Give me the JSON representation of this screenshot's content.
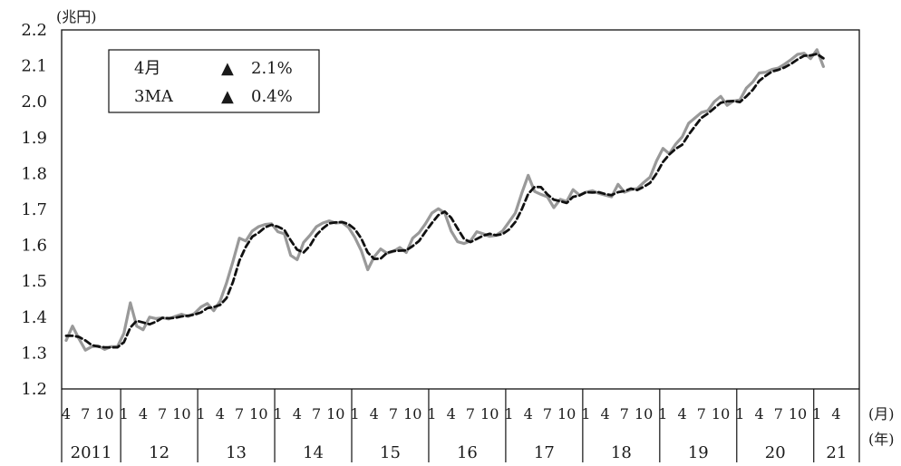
{
  "chart_data": {
    "type": "line",
    "y_unit": "(兆円)",
    "ylim": [
      1.2,
      2.2
    ],
    "yticks": [
      "2.2",
      "2.1",
      "2.0",
      "1.9",
      "1.8",
      "1.7",
      "1.6",
      "1.5",
      "1.4",
      "1.3",
      "1.2"
    ],
    "x_month_unit": "(月)",
    "x_year_unit": "(年)",
    "x_month_labels": [
      "4",
      "7",
      "10",
      "1"
    ],
    "last_year_month_labels": [
      "1",
      "4"
    ],
    "x_years": [
      "2011",
      "12",
      "13",
      "14",
      "15",
      "16",
      "17",
      "18",
      "19",
      "20",
      "21"
    ],
    "legend": [
      {
        "label": "4月",
        "marker": "▲",
        "value": "2.1%"
      },
      {
        "label": "3MA",
        "marker": "▲",
        "value": "0.4%"
      }
    ],
    "series": [
      {
        "style": "solid",
        "color": "#999999",
        "start": "2011-04",
        "values": [
          1.335,
          1.375,
          1.34,
          1.308,
          1.318,
          1.32,
          1.31,
          1.318,
          1.318,
          1.355,
          1.44,
          1.375,
          1.365,
          1.4,
          1.396,
          1.398,
          1.395,
          1.402,
          1.408,
          1.402,
          1.41,
          1.428,
          1.438,
          1.418,
          1.445,
          1.495,
          1.555,
          1.62,
          1.612,
          1.64,
          1.652,
          1.658,
          1.66,
          1.638,
          1.632,
          1.572,
          1.56,
          1.608,
          1.628,
          1.652,
          1.662,
          1.668,
          1.662,
          1.664,
          1.65,
          1.622,
          1.585,
          1.532,
          1.568,
          1.59,
          1.578,
          1.583,
          1.594,
          1.58,
          1.62,
          1.635,
          1.66,
          1.69,
          1.702,
          1.69,
          1.64,
          1.61,
          1.605,
          1.612,
          1.638,
          1.632,
          1.625,
          1.628,
          1.64,
          1.665,
          1.69,
          1.745,
          1.795,
          1.75,
          1.742,
          1.735,
          1.705,
          1.728,
          1.722,
          1.755,
          1.74,
          1.748,
          1.752,
          1.745,
          1.74,
          1.735,
          1.77,
          1.748,
          1.755,
          1.758,
          1.775,
          1.79,
          1.835,
          1.87,
          1.855,
          1.882,
          1.902,
          1.94,
          1.955,
          1.97,
          1.975,
          2.0,
          2.015,
          1.99,
          2.002,
          2.005,
          2.038,
          2.055,
          2.08,
          2.082,
          2.09,
          2.094,
          2.105,
          2.118,
          2.132,
          2.135,
          2.12,
          2.145,
          2.098
        ]
      },
      {
        "style": "dashed",
        "color": "#111111",
        "start": "2011-04",
        "values": [
          1.348,
          1.348,
          1.345,
          1.335,
          1.322,
          1.318,
          1.316,
          1.316,
          1.316,
          1.33,
          1.371,
          1.39,
          1.385,
          1.38,
          1.387,
          1.398,
          1.397,
          1.398,
          1.402,
          1.404,
          1.407,
          1.413,
          1.425,
          1.428,
          1.434,
          1.453,
          1.498,
          1.557,
          1.596,
          1.624,
          1.635,
          1.65,
          1.657,
          1.652,
          1.643,
          1.614,
          1.588,
          1.58,
          1.599,
          1.629,
          1.647,
          1.661,
          1.664,
          1.665,
          1.659,
          1.645,
          1.619,
          1.58,
          1.562,
          1.563,
          1.579,
          1.584,
          1.585,
          1.586,
          1.598,
          1.612,
          1.638,
          1.662,
          1.684,
          1.694,
          1.677,
          1.647,
          1.618,
          1.609,
          1.618,
          1.627,
          1.632,
          1.628,
          1.631,
          1.644,
          1.665,
          1.7,
          1.743,
          1.763,
          1.762,
          1.742,
          1.727,
          1.723,
          1.718,
          1.735,
          1.739,
          1.748,
          1.747,
          1.748,
          1.743,
          1.74,
          1.748,
          1.751,
          1.758,
          1.754,
          1.763,
          1.774,
          1.8,
          1.832,
          1.853,
          1.869,
          1.88,
          1.908,
          1.932,
          1.955,
          1.967,
          1.982,
          1.997,
          2.001,
          2.002,
          1.999,
          2.015,
          2.033,
          2.058,
          2.072,
          2.084,
          2.089,
          2.096,
          2.106,
          2.118,
          2.128,
          2.129,
          2.133,
          2.121
        ]
      }
    ]
  }
}
